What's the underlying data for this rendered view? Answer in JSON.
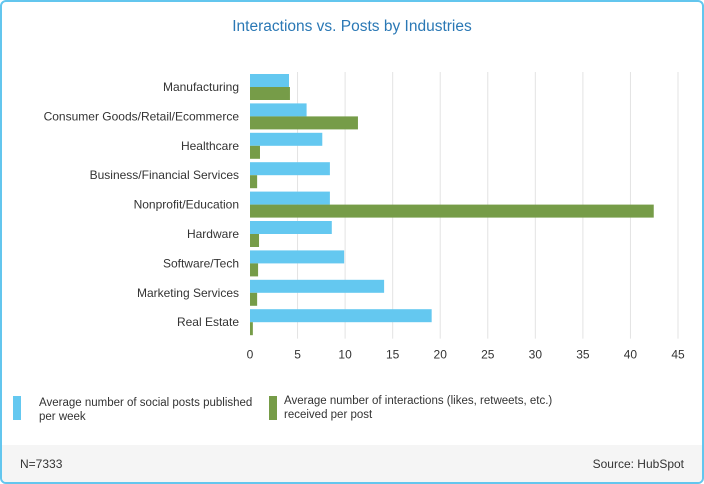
{
  "chart_data": {
    "type": "bar",
    "orientation": "horizontal",
    "title": "Interactions vs. Posts by Industries",
    "categories": [
      "Manufacturing",
      "Consumer Goods/Retail/Ecommerce",
      "Healthcare",
      "Business/Financial Services",
      "Nonprofit/Education",
      "Hardware",
      "Software/Tech",
      "Marketing Services",
      "Real Estate"
    ],
    "series": [
      {
        "name": "Average number of social posts published per week",
        "color": "#64c8f0",
        "values": [
          4.1,
          5.95,
          7.6,
          8.4,
          8.4,
          8.6,
          9.9,
          14.1,
          19.1
        ]
      },
      {
        "name": "Average number of interactions (likes, retweets, etc.) received per post",
        "color": "#769c48",
        "values": [
          4.2,
          11.35,
          1.05,
          0.75,
          42.45,
          0.95,
          0.85,
          0.75,
          0.3
        ]
      }
    ],
    "xlim": [
      0,
      45
    ],
    "xticks": [
      0,
      5,
      10,
      15,
      20,
      25,
      30,
      35,
      40,
      45
    ],
    "grid": true,
    "legend_position": "bottom"
  },
  "legend": {
    "item1": "Average number of social posts published per week",
    "item2_line1": "Average number of interactions (likes, retweets, etc.)",
    "item2_line2": "received per post"
  },
  "footer": {
    "sample": "N=7333",
    "source": "Source: HubSpot"
  }
}
